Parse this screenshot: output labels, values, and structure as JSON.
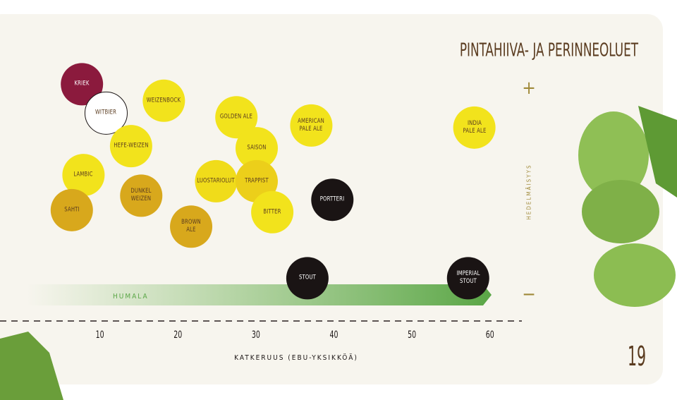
{
  "chart_data": {
    "type": "scatter",
    "title": "PINTAHIIVA- JA PERINNEOLUET",
    "x_label": "KATKERUUS (EBU-YKSIKKÖÄ)",
    "y_label": "HEDELMÄISYYS",
    "band_label": "HUMALA",
    "page_number": "19",
    "xlim": [
      0,
      64
    ],
    "xticks": [
      10,
      20,
      30,
      40,
      50,
      60
    ],
    "ylim": [
      -0.1,
      1.1
    ],
    "yticks": [
      {
        "value": 1,
        "label": "+"
      },
      {
        "value": 0,
        "label": "−"
      }
    ],
    "points": [
      {
        "label": "KRIEK",
        "x": 7.7,
        "y": 1.02,
        "color": "#8b1a3d"
      },
      {
        "label": "WITBIER",
        "x": 10.8,
        "y": 0.88,
        "color": "#ffffff"
      },
      {
        "label": "WEIZENBOCK",
        "x": 18.2,
        "y": 0.94,
        "color": "#f2e31c"
      },
      {
        "label": "HEFE-WEIZEN",
        "x": 14.0,
        "y": 0.72,
        "color": "#f2e31c"
      },
      {
        "label": "LAMBIC",
        "x": 7.9,
        "y": 0.58,
        "color": "#f2e31c"
      },
      {
        "label": "SAHTI",
        "x": 6.4,
        "y": 0.41,
        "color": "#d8a81c"
      },
      {
        "label": "DUNKEL\nWEIZEN",
        "x": 15.3,
        "y": 0.48,
        "color": "#d8a81c"
      },
      {
        "label": "BROWN\nALE",
        "x": 21.7,
        "y": 0.33,
        "color": "#d8a81c"
      },
      {
        "label": "GOLDEN ALE",
        "x": 27.5,
        "y": 0.86,
        "color": "#f2e31c"
      },
      {
        "label": "SAISON",
        "x": 30.1,
        "y": 0.71,
        "color": "#f2e31c"
      },
      {
        "label": "LUOSTARIOLUT",
        "x": 24.9,
        "y": 0.55,
        "color": "#f0dc1a"
      },
      {
        "label": "TRAPPIST",
        "x": 30.1,
        "y": 0.55,
        "color": "#eccf1a"
      },
      {
        "label": "BITTER",
        "x": 32.1,
        "y": 0.4,
        "color": "#f2e31c"
      },
      {
        "label": "AMERICAN\nPALE ALE",
        "x": 37.1,
        "y": 0.82,
        "color": "#f2e31c"
      },
      {
        "label": "PORTTERI",
        "x": 39.8,
        "y": 0.46,
        "color": "#1a1414"
      },
      {
        "label": "STOUT",
        "x": 36.6,
        "y": 0.08,
        "color": "#1a1414"
      },
      {
        "label": "INDIA\nPALE ALE",
        "x": 58.0,
        "y": 0.81,
        "color": "#f2e31c"
      },
      {
        "label": "IMPERIAL\nSTOUT",
        "x": 57.2,
        "y": 0.08,
        "color": "#1a1414"
      }
    ]
  }
}
